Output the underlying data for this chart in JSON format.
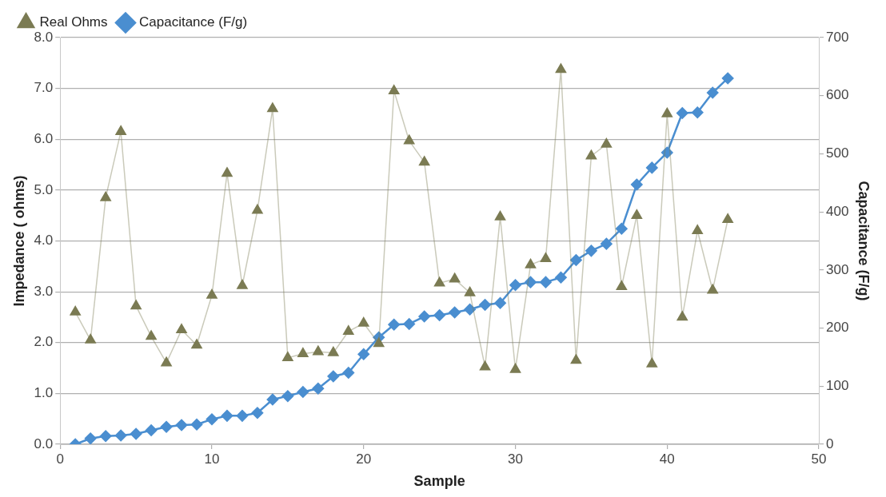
{
  "chart_data": {
    "type": "line",
    "xlabel": "Sample",
    "ylabel": "Impedance ( ohms)",
    "y2label": "Capacitance (F/g)",
    "x": [
      1,
      2,
      3,
      4,
      5,
      6,
      7,
      8,
      9,
      10,
      11,
      12,
      13,
      14,
      15,
      16,
      17,
      18,
      19,
      20,
      21,
      22,
      23,
      24,
      25,
      26,
      27,
      28,
      29,
      30,
      31,
      32,
      33,
      34,
      35,
      36,
      37,
      38,
      39,
      40,
      41,
      42,
      43,
      44
    ],
    "series": [
      {
        "name": "Real Ohms",
        "color": "#7b7b53",
        "marker": "triangle",
        "values": [
          2.6,
          2.05,
          4.85,
          6.15,
          2.72,
          2.12,
          1.6,
          2.25,
          1.95,
          2.93,
          5.33,
          3.12,
          4.6,
          6.6,
          1.7,
          1.78,
          1.82,
          1.8,
          2.22,
          2.38,
          1.98,
          6.95,
          5.97,
          5.55,
          3.17,
          3.25,
          2.98,
          1.52,
          4.47,
          1.47,
          3.53,
          3.65,
          7.37,
          1.65,
          5.67,
          5.9,
          3.1,
          4.5,
          1.58,
          6.5,
          2.5,
          4.2,
          3.03,
          4.42
        ]
      },
      {
        "name": "Capacitance (F/g)",
        "color": "#4a8ed0",
        "marker": "diamond",
        "axis": "y2",
        "values": [
          0,
          10,
          14,
          15,
          18,
          24,
          30,
          33,
          34,
          43,
          49,
          49,
          54,
          77,
          83,
          90,
          96,
          117,
          123,
          155,
          184,
          206,
          207,
          220,
          222,
          227,
          232,
          240,
          243,
          274,
          279,
          279,
          287,
          317,
          333,
          345,
          371,
          447,
          476,
          502,
          570,
          571,
          605,
          630
        ]
      }
    ],
    "xlim": [
      0,
      50
    ],
    "xticks": [
      0,
      10,
      20,
      30,
      40,
      50
    ],
    "ylim": [
      0,
      8
    ],
    "yticks": [
      {
        "value": 0,
        "label": "0.0"
      },
      {
        "value": 1,
        "label": "1.0"
      },
      {
        "value": 2,
        "label": "2.0"
      },
      {
        "value": 3,
        "label": "3.0"
      },
      {
        "value": 4,
        "label": "4.0"
      },
      {
        "value": 5,
        "label": "5.0"
      },
      {
        "value": 6,
        "label": "6.0"
      },
      {
        "value": 7,
        "label": "7.0"
      },
      {
        "value": 8,
        "label": "8.0"
      }
    ],
    "y2lim": [
      0,
      700
    ],
    "y2ticks": [
      0,
      100,
      200,
      300,
      400,
      500,
      600,
      700
    ],
    "grid": "y",
    "legend": "top left"
  }
}
